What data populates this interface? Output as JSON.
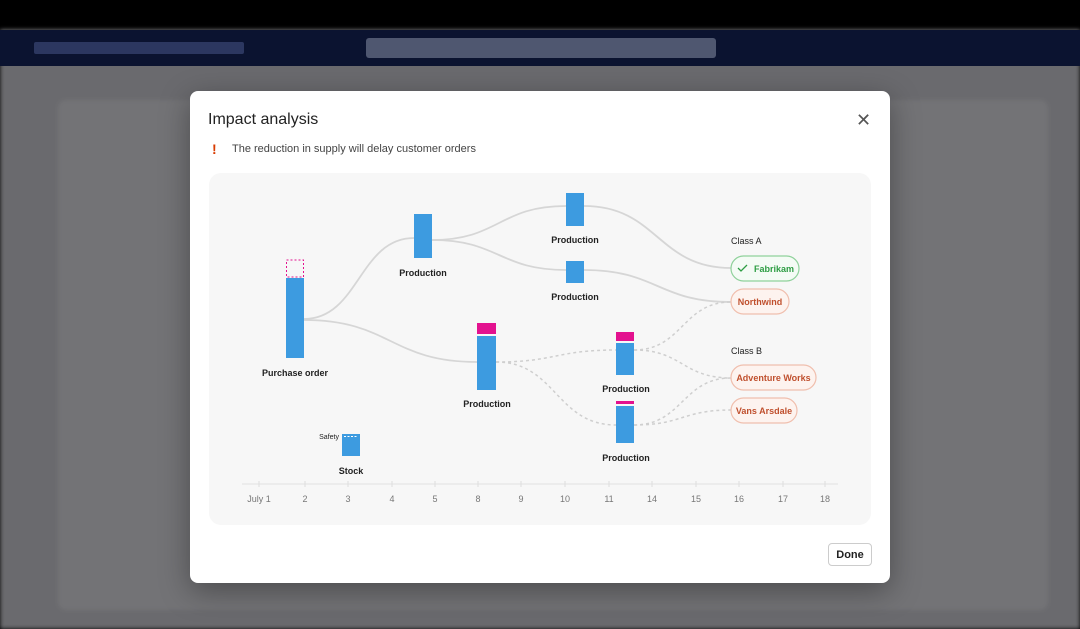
{
  "modal": {
    "title": "Impact analysis",
    "close_icon": "close-icon",
    "warning": {
      "icon": "exclamation-icon",
      "text": "The reduction in supply will delay customer orders",
      "color": "#d83b01"
    },
    "done_label": "Done"
  },
  "diagram": {
    "axis_labels": [
      "July 1",
      "2",
      "3",
      "4",
      "5",
      "8",
      "9",
      "10",
      "11",
      "14",
      "15",
      "16",
      "17",
      "18"
    ],
    "nodes": [
      {
        "id": "po",
        "label": "Purchase order",
        "shortfall": true
      },
      {
        "id": "p1",
        "label": "Production"
      },
      {
        "id": "p2",
        "label": "Production"
      },
      {
        "id": "p3",
        "label": "Production"
      },
      {
        "id": "p4",
        "label": "Production",
        "shortfall": true
      },
      {
        "id": "p5",
        "label": "Production",
        "shortfall": true
      },
      {
        "id": "p6",
        "label": "Production",
        "shortfall": true
      },
      {
        "id": "stock",
        "label": "Stock",
        "sublabel": "Safety"
      }
    ],
    "groups": [
      {
        "label": "Class A",
        "customers": [
          {
            "name": "Fabrikam",
            "status": "on-time",
            "icon": "check-icon"
          },
          {
            "name": "Northwind",
            "status": "delayed"
          }
        ]
      },
      {
        "label": "Class B",
        "customers": [
          {
            "name": "Adventure Works",
            "status": "delayed"
          },
          {
            "name": "Vans Arsdale",
            "status": "delayed"
          }
        ]
      }
    ],
    "colors": {
      "supply": "#3d9be0",
      "shortfall": "#e3128f",
      "ok": "#2e9e44",
      "delayed": "#c0502e"
    }
  }
}
